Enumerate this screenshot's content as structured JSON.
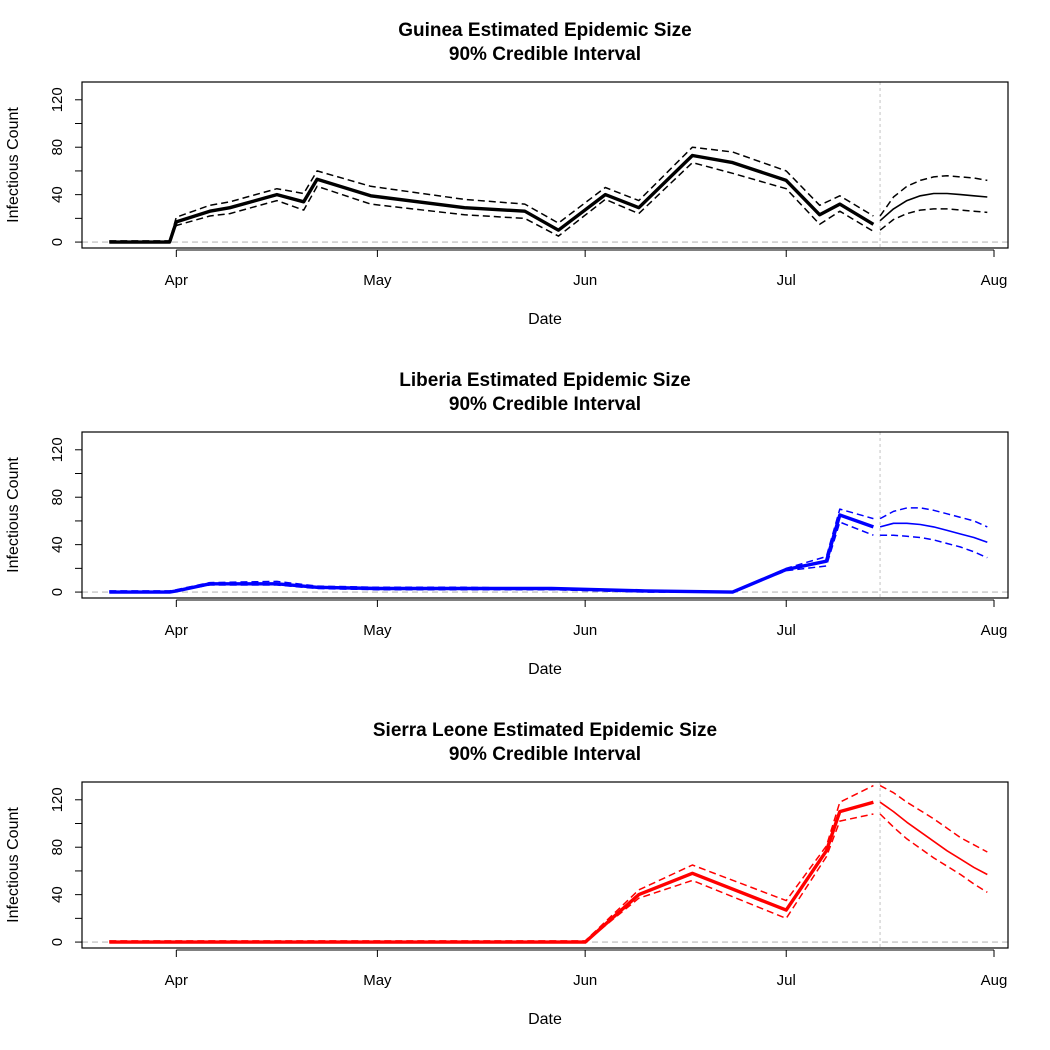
{
  "chart_data": [
    {
      "type": "line",
      "title": "Guinea Estimated Epidemic Size",
      "subtitle": "90% Credible Interval",
      "xlabel": "Date",
      "ylabel": "Infectious Count",
      "ylim": [
        -5,
        135
      ],
      "xlim": [
        "2014-03-23",
        "2014-08-01"
      ],
      "y_ticks": [
        "0",
        "40",
        "80",
        "120"
      ],
      "x_ticks": [
        {
          "date": "2014-04-01",
          "label": "Apr"
        },
        {
          "date": "2014-05-01",
          "label": "May"
        },
        {
          "date": "2014-06-01",
          "label": "Jun"
        },
        {
          "date": "2014-07-01",
          "label": "Jul"
        },
        {
          "date": "2014-08-01",
          "label": "Aug"
        }
      ],
      "color": "#000000",
      "forecast_start": "2014-07-15",
      "fitted": {
        "x": [
          "2014-03-22",
          "2014-03-31",
          "2014-04-01",
          "2014-04-06",
          "2014-04-09",
          "2014-04-16",
          "2014-04-20",
          "2014-04-22",
          "2014-04-30",
          "2014-05-14",
          "2014-05-23",
          "2014-05-28",
          "2014-06-04",
          "2014-06-09",
          "2014-06-17",
          "2014-06-23",
          "2014-07-01",
          "2014-07-06",
          "2014-07-09",
          "2014-07-14"
        ],
        "series": [
          {
            "values": [
              0,
              0,
              17,
              26,
              29,
              40,
              34,
              53,
              39,
              29,
              26,
              10,
              40,
              29,
              73,
              67,
              52,
              23,
              32,
              15
            ]
          },
          {
            "values": [
              1,
              1,
              21,
              31,
              34,
              45,
              41,
              60,
              47,
              36,
              32,
              16,
              46,
              35,
              80,
              76,
              60,
              31,
              39,
              22
            ]
          },
          {
            "values": [
              0,
              0,
              14,
              22,
              24,
              35,
              27,
              47,
              32,
              23,
              20,
              5,
              36,
              24,
              67,
              58,
              45,
              15,
              26,
              9
            ]
          }
        ]
      },
      "forecast": {
        "x": [
          "2014-07-15",
          "2014-07-17",
          "2014-07-19",
          "2014-07-21",
          "2014-07-23",
          "2014-07-25",
          "2014-07-27",
          "2014-07-29",
          "2014-07-31"
        ],
        "series": [
          {
            "values": [
              18,
              28,
              35,
              39,
              41,
              41,
              40,
              39,
              38
            ]
          },
          {
            "values": [
              22,
              38,
              47,
              52,
              55,
              56,
              55,
              54,
              52
            ]
          },
          {
            "values": [
              10,
              19,
              24,
              27,
              28,
              28,
              27,
              26,
              25
            ]
          }
        ]
      }
    },
    {
      "type": "line",
      "title": "Liberia Estimated Epidemic Size",
      "subtitle": "90% Credible Interval",
      "xlabel": "Date",
      "ylabel": "Infectious Count",
      "ylim": [
        -5,
        135
      ],
      "xlim": [
        "2014-03-23",
        "2014-08-01"
      ],
      "y_ticks": [
        "0",
        "40",
        "80",
        "120"
      ],
      "x_ticks": [
        {
          "date": "2014-04-01",
          "label": "Apr"
        },
        {
          "date": "2014-05-01",
          "label": "May"
        },
        {
          "date": "2014-06-01",
          "label": "Jun"
        },
        {
          "date": "2014-07-01",
          "label": "Jul"
        },
        {
          "date": "2014-08-01",
          "label": "Aug"
        }
      ],
      "color": "#0000ff",
      "forecast_start": "2014-07-15",
      "fitted": {
        "x": [
          "2014-03-22",
          "2014-03-31",
          "2014-04-01",
          "2014-04-06",
          "2014-04-16",
          "2014-04-22",
          "2014-05-01",
          "2014-05-14",
          "2014-05-27",
          "2014-06-10",
          "2014-06-23",
          "2014-07-01",
          "2014-07-07",
          "2014-07-09",
          "2014-07-14"
        ],
        "series": [
          {
            "values": [
              0,
              0,
              1,
              7,
              7,
              4,
              3,
              3,
              3,
              1,
              0,
              19,
              26,
              65,
              55
            ]
          },
          {
            "values": [
              1,
              1,
              2,
              8,
              9,
              5,
              4,
              4,
              3,
              1,
              0,
              20,
              30,
              70,
              62
            ]
          },
          {
            "values": [
              0,
              0,
              1,
              6,
              6,
              3,
              2,
              2,
              2,
              0,
              0,
              18,
              22,
              59,
              48
            ]
          }
        ]
      },
      "forecast": {
        "x": [
          "2014-07-15",
          "2014-07-17",
          "2014-07-19",
          "2014-07-21",
          "2014-07-23",
          "2014-07-25",
          "2014-07-27",
          "2014-07-29",
          "2014-07-31"
        ],
        "series": [
          {
            "values": [
              55,
              58,
              58,
              57,
              55,
              52,
              49,
              46,
              42
            ]
          },
          {
            "values": [
              62,
              68,
              71,
              71,
              69,
              66,
              63,
              60,
              55
            ]
          },
          {
            "values": [
              48,
              48,
              47,
              46,
              44,
              41,
              38,
              34,
              29
            ]
          }
        ]
      }
    },
    {
      "type": "line",
      "title": "Sierra Leone Estimated Epidemic Size",
      "subtitle": "90% Credible Interval",
      "xlabel": "Date",
      "ylabel": "Infectious Count",
      "ylim": [
        -5,
        135
      ],
      "xlim": [
        "2014-03-23",
        "2014-08-01"
      ],
      "y_ticks": [
        "0",
        "40",
        "80",
        "120"
      ],
      "x_ticks": [
        {
          "date": "2014-04-01",
          "label": "Apr"
        },
        {
          "date": "2014-05-01",
          "label": "May"
        },
        {
          "date": "2014-06-01",
          "label": "Jun"
        },
        {
          "date": "2014-07-01",
          "label": "Jul"
        },
        {
          "date": "2014-08-01",
          "label": "Aug"
        }
      ],
      "color": "#ff0000",
      "forecast_start": "2014-07-15",
      "fitted": {
        "x": [
          "2014-03-22",
          "2014-06-01",
          "2014-06-09",
          "2014-06-17",
          "2014-07-01",
          "2014-07-07",
          "2014-07-09",
          "2014-07-14"
        ],
        "series": [
          {
            "values": [
              0,
              0,
              40,
              58,
              27,
              77,
              110,
              118
            ]
          },
          {
            "values": [
              1,
              1,
              44,
              65,
              35,
              81,
              118,
              132
            ]
          },
          {
            "values": [
              0,
              0,
              37,
              52,
              20,
              72,
              102,
              108
            ]
          }
        ]
      },
      "forecast": {
        "x": [
          "2014-07-15",
          "2014-07-17",
          "2014-07-19",
          "2014-07-21",
          "2014-07-23",
          "2014-07-25",
          "2014-07-27",
          "2014-07-29",
          "2014-07-31"
        ],
        "series": [
          {
            "values": [
              118,
              110,
              101,
              93,
              85,
              77,
              70,
              63,
              57
            ]
          },
          {
            "values": [
              132,
              126,
              118,
              111,
              104,
              96,
              88,
              82,
              76
            ]
          },
          {
            "values": [
              108,
              97,
              87,
              79,
              71,
              64,
              57,
              49,
              42
            ]
          }
        ]
      }
    }
  ]
}
